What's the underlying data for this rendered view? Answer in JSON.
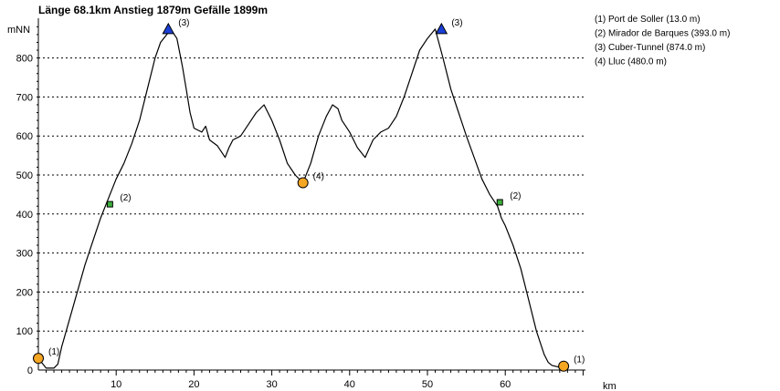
{
  "chart_data": {
    "type": "line",
    "title": "Länge 68.1km Anstieg 1879m Gefälle 1899m",
    "ylabel": "mNN",
    "xlabel": "km",
    "xlim": [
      0,
      68.1
    ],
    "ylim": [
      0,
      900
    ],
    "x_ticks": [
      10,
      20,
      30,
      40,
      50,
      60
    ],
    "y_ticks": [
      0,
      100,
      200,
      300,
      400,
      500,
      600,
      700,
      800
    ],
    "grid": "horizontal-dotted",
    "legend_position": "top-right",
    "legend": [
      "(1) Port de Soller (13.0 m)",
      "(2) Mirador de Barques (393.0 m)",
      "(3) Cuber-Tunnel (874.0 m)",
      "(4) Lluc (480.0 m)"
    ],
    "series": [
      {
        "x": [
          0,
          1,
          2,
          2.5,
          3,
          4,
          5,
          6,
          7,
          8,
          9,
          10,
          11,
          12,
          13,
          14,
          15,
          15.7,
          16.5,
          17,
          17.8,
          18.5,
          19,
          19.5,
          20,
          21,
          21.5,
          22,
          23,
          24,
          24.5,
          25,
          26,
          27,
          28,
          29,
          30,
          31,
          32,
          33,
          34,
          35,
          36,
          37,
          37.8,
          38.5,
          39,
          40,
          41,
          42,
          43,
          44,
          45,
          46,
          47,
          48,
          49,
          50,
          51,
          52,
          53,
          54,
          55,
          56,
          57,
          58,
          59,
          59.5,
          60,
          61,
          62,
          63,
          64,
          65,
          65.5,
          66,
          66.8,
          67.5,
          68.1
        ],
        "y": [
          30,
          5,
          5,
          15,
          60,
          130,
          200,
          270,
          330,
          390,
          440,
          490,
          530,
          580,
          640,
          720,
          800,
          840,
          860,
          874,
          850,
          780,
          720,
          660,
          620,
          610,
          625,
          590,
          575,
          545,
          570,
          590,
          600,
          630,
          660,
          680,
          640,
          590,
          530,
          500,
          480,
          530,
          600,
          650,
          680,
          670,
          640,
          610,
          570,
          545,
          590,
          610,
          620,
          650,
          700,
          760,
          820,
          850,
          874,
          800,
          720,
          660,
          600,
          545,
          490,
          450,
          420,
          390,
          370,
          320,
          260,
          180,
          100,
          40,
          20,
          12,
          8,
          10,
          13
        ]
      }
    ],
    "markers": [
      {
        "x": 0,
        "y": 30,
        "label": "(1)",
        "shape": "circle",
        "color": "#f5a623"
      },
      {
        "x": 9.2,
        "y": 425,
        "label": "(2)",
        "shape": "square",
        "color": "#3cb03c"
      },
      {
        "x": 16.7,
        "y": 874,
        "label": "(3)",
        "shape": "triangle",
        "color": "#1a3fd6"
      },
      {
        "x": 34,
        "y": 480,
        "label": "(4)",
        "shape": "circle",
        "color": "#f5a623"
      },
      {
        "x": 51.8,
        "y": 874,
        "label": "(3)",
        "shape": "triangle",
        "color": "#1a3fd6"
      },
      {
        "x": 59.3,
        "y": 430,
        "label": "(2)",
        "shape": "square",
        "color": "#3cb03c"
      },
      {
        "x": 67.5,
        "y": 10,
        "label": "(1)",
        "shape": "circle",
        "color": "#f5a623"
      }
    ]
  }
}
